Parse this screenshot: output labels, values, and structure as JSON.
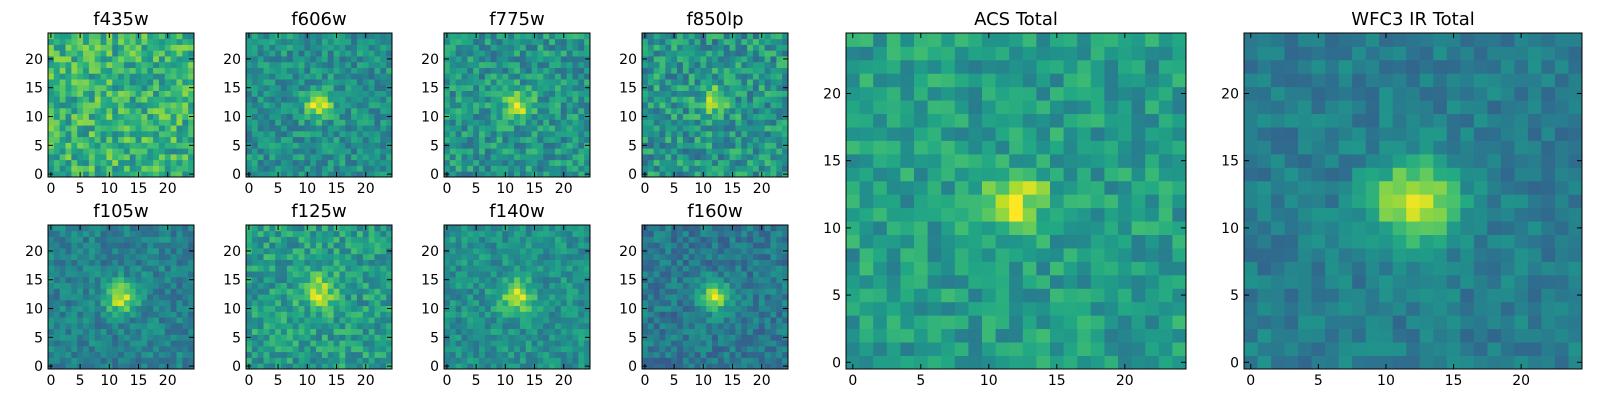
{
  "colormap": "viridis",
  "colors": {
    "low": "#440154",
    "mid": "#21918c",
    "high": "#fde725",
    "frame": "#000000",
    "background": "#ffffff"
  },
  "chart_data": [
    {
      "type": "heatmap",
      "title": "f435w",
      "grid_size": 25,
      "source_center": null,
      "source_sigma": 1.8,
      "source_peak": 0.0,
      "background": 0.64,
      "noise": 0.2,
      "seed": 11,
      "xticks": [
        0,
        5,
        10,
        15,
        20
      ],
      "yticks": [
        0,
        5,
        10,
        15,
        20
      ],
      "xlim": [
        -0.5,
        24.5
      ],
      "ylim": [
        -0.5,
        24.5
      ]
    },
    {
      "type": "heatmap",
      "title": "f606w",
      "grid_size": 25,
      "source_center": [
        12,
        12
      ],
      "source_sigma": 1.7,
      "source_peak": 0.45,
      "background": 0.5,
      "noise": 0.15,
      "seed": 23,
      "xticks": [
        0,
        5,
        10,
        15,
        20
      ],
      "yticks": [
        0,
        5,
        10,
        15,
        20
      ],
      "xlim": [
        -0.5,
        24.5
      ],
      "ylim": [
        -0.5,
        24.5
      ]
    },
    {
      "type": "heatmap",
      "title": "f775w",
      "grid_size": 25,
      "source_center": [
        12,
        12
      ],
      "source_sigma": 1.8,
      "source_peak": 0.38,
      "background": 0.52,
      "noise": 0.17,
      "seed": 37,
      "xticks": [
        0,
        5,
        10,
        15,
        20
      ],
      "yticks": [
        0,
        5,
        10,
        15,
        20
      ],
      "xlim": [
        -0.5,
        24.5
      ],
      "ylim": [
        -0.5,
        24.5
      ]
    },
    {
      "type": "heatmap",
      "title": "f850lp",
      "grid_size": 25,
      "source_center": [
        12,
        13
      ],
      "source_sigma": 1.9,
      "source_peak": 0.3,
      "background": 0.52,
      "noise": 0.19,
      "seed": 41,
      "xticks": [
        0,
        5,
        10,
        15,
        20
      ],
      "yticks": [
        0,
        5,
        10,
        15,
        20
      ],
      "xlim": [
        -0.5,
        24.5
      ],
      "ylim": [
        -0.5,
        24.5
      ]
    },
    {
      "type": "heatmap",
      "title": "f105w",
      "grid_size": 25,
      "source_center": [
        12,
        12
      ],
      "source_sigma": 1.9,
      "source_peak": 0.48,
      "background": 0.44,
      "noise": 0.12,
      "seed": 53,
      "xticks": [
        0,
        5,
        10,
        15,
        20
      ],
      "yticks": [
        0,
        5,
        10,
        15,
        20
      ],
      "xlim": [
        -0.5,
        24.5
      ],
      "ylim": [
        -0.5,
        24.5
      ]
    },
    {
      "type": "heatmap",
      "title": "f125w",
      "grid_size": 25,
      "source_center": [
        12,
        13
      ],
      "source_sigma": 2.1,
      "source_peak": 0.34,
      "background": 0.55,
      "noise": 0.16,
      "seed": 67,
      "xticks": [
        0,
        5,
        10,
        15,
        20
      ],
      "yticks": [
        0,
        5,
        10,
        15,
        20
      ],
      "xlim": [
        -0.5,
        24.5
      ],
      "ylim": [
        -0.5,
        24.5
      ]
    },
    {
      "type": "heatmap",
      "title": "f140w",
      "grid_size": 25,
      "source_center": [
        12,
        12
      ],
      "source_sigma": 2.0,
      "source_peak": 0.4,
      "background": 0.5,
      "noise": 0.13,
      "seed": 79,
      "xticks": [
        0,
        5,
        10,
        15,
        20
      ],
      "yticks": [
        0,
        5,
        10,
        15,
        20
      ],
      "xlim": [
        -0.5,
        24.5
      ],
      "ylim": [
        -0.5,
        24.5
      ]
    },
    {
      "type": "heatmap",
      "title": "f160w",
      "grid_size": 25,
      "source_center": [
        12,
        12
      ],
      "source_sigma": 1.8,
      "source_peak": 0.5,
      "background": 0.4,
      "noise": 0.12,
      "seed": 97,
      "xticks": [
        0,
        5,
        10,
        15,
        20
      ],
      "yticks": [
        0,
        5,
        10,
        15,
        20
      ],
      "xlim": [
        -0.5,
        24.5
      ],
      "ylim": [
        -0.5,
        24.5
      ]
    },
    {
      "type": "heatmap",
      "title": "ACS Total",
      "grid_size": 25,
      "source_center": [
        12,
        12
      ],
      "source_sigma": 1.6,
      "source_peak": 0.4,
      "background": 0.55,
      "noise": 0.14,
      "seed": 131,
      "xticks": [
        0,
        5,
        10,
        15,
        20
      ],
      "yticks": [
        0,
        5,
        10,
        15,
        20
      ],
      "xlim": [
        -0.5,
        24.5
      ],
      "ylim": [
        -0.5,
        24.5
      ]
    },
    {
      "type": "heatmap",
      "title": "WFC3 IR Total",
      "grid_size": 25,
      "source_center": [
        12,
        12
      ],
      "source_sigma": 2.2,
      "source_peak": 0.52,
      "background": 0.42,
      "noise": 0.09,
      "seed": 151,
      "xticks": [
        0,
        5,
        10,
        15,
        20
      ],
      "yticks": [
        0,
        5,
        10,
        15,
        20
      ],
      "xlim": [
        -0.5,
        24.5
      ],
      "ylim": [
        -0.5,
        24.5
      ]
    }
  ]
}
